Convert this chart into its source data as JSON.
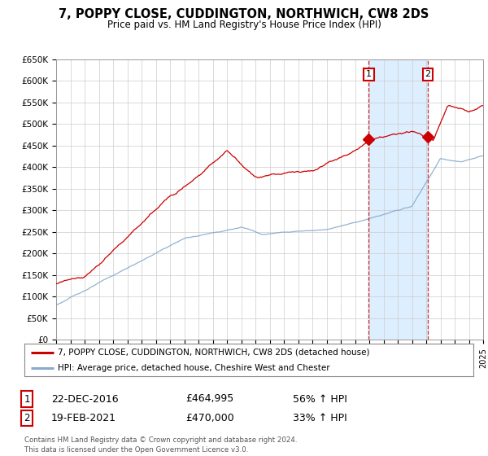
{
  "title_line1": "7, POPPY CLOSE, CUDDINGTON, NORTHWICH, CW8 2DS",
  "title_line2": "Price paid vs. HM Land Registry's House Price Index (HPI)",
  "yticks": [
    0,
    50000,
    100000,
    150000,
    200000,
    250000,
    300000,
    350000,
    400000,
    450000,
    500000,
    550000,
    600000,
    650000
  ],
  "ytick_labels": [
    "£0",
    "£50K",
    "£100K",
    "£150K",
    "£200K",
    "£250K",
    "£300K",
    "£350K",
    "£400K",
    "£450K",
    "£500K",
    "£550K",
    "£600K",
    "£650K"
  ],
  "xmin_year": 1995,
  "xmax_year": 2025,
  "ymin": 0,
  "ymax": 650000,
  "transaction1_date": 2016.97,
  "transaction1_price": 464995,
  "transaction1_label": "1",
  "transaction1_display": "22-DEC-2016",
  "transaction1_price_display": "£464,995",
  "transaction1_hpi": "56% ↑ HPI",
  "transaction2_date": 2021.12,
  "transaction2_price": 470000,
  "transaction2_label": "2",
  "transaction2_display": "19-FEB-2021",
  "transaction2_price_display": "£470,000",
  "transaction2_hpi": "33% ↑ HPI",
  "line1_color": "#cc0000",
  "line2_color": "#88aacc",
  "span_color": "#ddeeff",
  "background_color": "#ffffff",
  "grid_color": "#cccccc",
  "legend_label1": "7, POPPY CLOSE, CUDDINGTON, NORTHWICH, CW8 2DS (detached house)",
  "legend_label2": "HPI: Average price, detached house, Cheshire West and Chester",
  "footer": "Contains HM Land Registry data © Crown copyright and database right 2024.\nThis data is licensed under the Open Government Licence v3.0.",
  "xtick_years": [
    1995,
    1996,
    1997,
    1998,
    1999,
    2000,
    2001,
    2002,
    2003,
    2004,
    2005,
    2006,
    2007,
    2008,
    2009,
    2010,
    2011,
    2012,
    2013,
    2014,
    2015,
    2016,
    2017,
    2018,
    2019,
    2020,
    2021,
    2022,
    2023,
    2024,
    2025
  ]
}
